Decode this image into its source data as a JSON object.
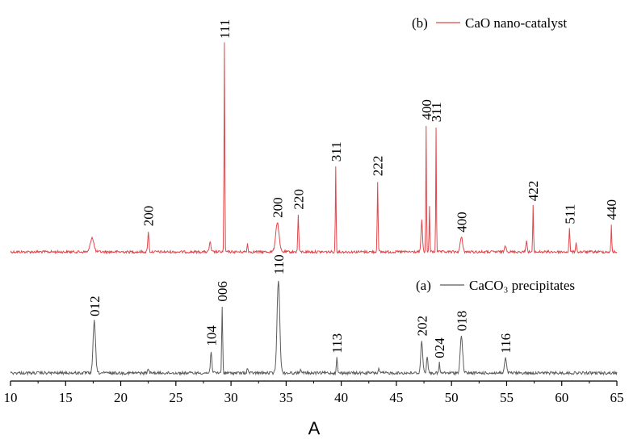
{
  "chart_data": {
    "type": "line",
    "xlabel": "A",
    "xlim": [
      10,
      65
    ],
    "x_ticks": [
      "10",
      "15",
      "20",
      "25",
      "30",
      "35",
      "40",
      "45",
      "50",
      "55",
      "60",
      "65"
    ],
    "ylabel": "",
    "y_ticks_shown": false,
    "legend_position": "top-right",
    "series": [
      {
        "name": "CaO nano-catalyst",
        "legend_prefix": "(b)",
        "color": "#e0474c",
        "peaks": [
          {
            "x": 17.4,
            "h": 0.07,
            "w": 0.35,
            "label": ""
          },
          {
            "x": 22.5,
            "h": 0.1,
            "w": 0.12,
            "label": "200"
          },
          {
            "x": 28.1,
            "h": 0.05,
            "w": 0.15,
            "label": ""
          },
          {
            "x": 29.4,
            "h": 1.0,
            "w": 0.08,
            "label": "111"
          },
          {
            "x": 31.5,
            "h": 0.04,
            "w": 0.1,
            "label": ""
          },
          {
            "x": 34.2,
            "h": 0.14,
            "w": 0.35,
            "label": "200"
          },
          {
            "x": 36.1,
            "h": 0.18,
            "w": 0.1,
            "label": "220"
          },
          {
            "x": 39.5,
            "h": 0.41,
            "w": 0.08,
            "label": "311"
          },
          {
            "x": 43.3,
            "h": 0.34,
            "w": 0.09,
            "label": "222"
          },
          {
            "x": 47.3,
            "h": 0.15,
            "w": 0.15,
            "label": ""
          },
          {
            "x": 47.7,
            "h": 0.61,
            "w": 0.07,
            "label": "400"
          },
          {
            "x": 48.0,
            "h": 0.22,
            "w": 0.08,
            "label": ""
          },
          {
            "x": 48.6,
            "h": 0.6,
            "w": 0.07,
            "label": "311"
          },
          {
            "x": 50.9,
            "h": 0.07,
            "w": 0.25,
            "label": "400"
          },
          {
            "x": 54.9,
            "h": 0.03,
            "w": 0.2,
            "label": ""
          },
          {
            "x": 56.8,
            "h": 0.06,
            "w": 0.12,
            "label": ""
          },
          {
            "x": 57.4,
            "h": 0.22,
            "w": 0.08,
            "label": "422"
          },
          {
            "x": 60.7,
            "h": 0.11,
            "w": 0.1,
            "label": "511"
          },
          {
            "x": 61.3,
            "h": 0.05,
            "w": 0.1,
            "label": ""
          },
          {
            "x": 64.5,
            "h": 0.13,
            "w": 0.08,
            "label": "440"
          }
        ]
      },
      {
        "name": "CaCO₃ precipitates",
        "legend_prefix": "(a)",
        "color": "#5c5c5c",
        "peaks": [
          {
            "x": 17.6,
            "h": 0.21,
            "w": 0.25,
            "label": "012"
          },
          {
            "x": 22.5,
            "h": 0.02,
            "w": 0.12,
            "label": ""
          },
          {
            "x": 28.2,
            "h": 0.09,
            "w": 0.15,
            "label": "104"
          },
          {
            "x": 29.2,
            "h": 0.27,
            "w": 0.1,
            "label": "006"
          },
          {
            "x": 31.5,
            "h": 0.02,
            "w": 0.12,
            "label": ""
          },
          {
            "x": 34.3,
            "h": 0.38,
            "w": 0.28,
            "label": "110"
          },
          {
            "x": 36.3,
            "h": 0.02,
            "w": 0.1,
            "label": ""
          },
          {
            "x": 39.6,
            "h": 0.06,
            "w": 0.12,
            "label": "113"
          },
          {
            "x": 43.4,
            "h": 0.02,
            "w": 0.1,
            "label": ""
          },
          {
            "x": 47.3,
            "h": 0.13,
            "w": 0.2,
            "label": "202"
          },
          {
            "x": 47.8,
            "h": 0.07,
            "w": 0.15,
            "label": ""
          },
          {
            "x": 48.9,
            "h": 0.04,
            "w": 0.1,
            "label": "024"
          },
          {
            "x": 50.9,
            "h": 0.15,
            "w": 0.25,
            "label": "018"
          },
          {
            "x": 54.9,
            "h": 0.06,
            "w": 0.2,
            "label": "116"
          },
          {
            "x": 57.9,
            "h": 0.01,
            "w": 0.1,
            "label": ""
          }
        ]
      }
    ]
  }
}
